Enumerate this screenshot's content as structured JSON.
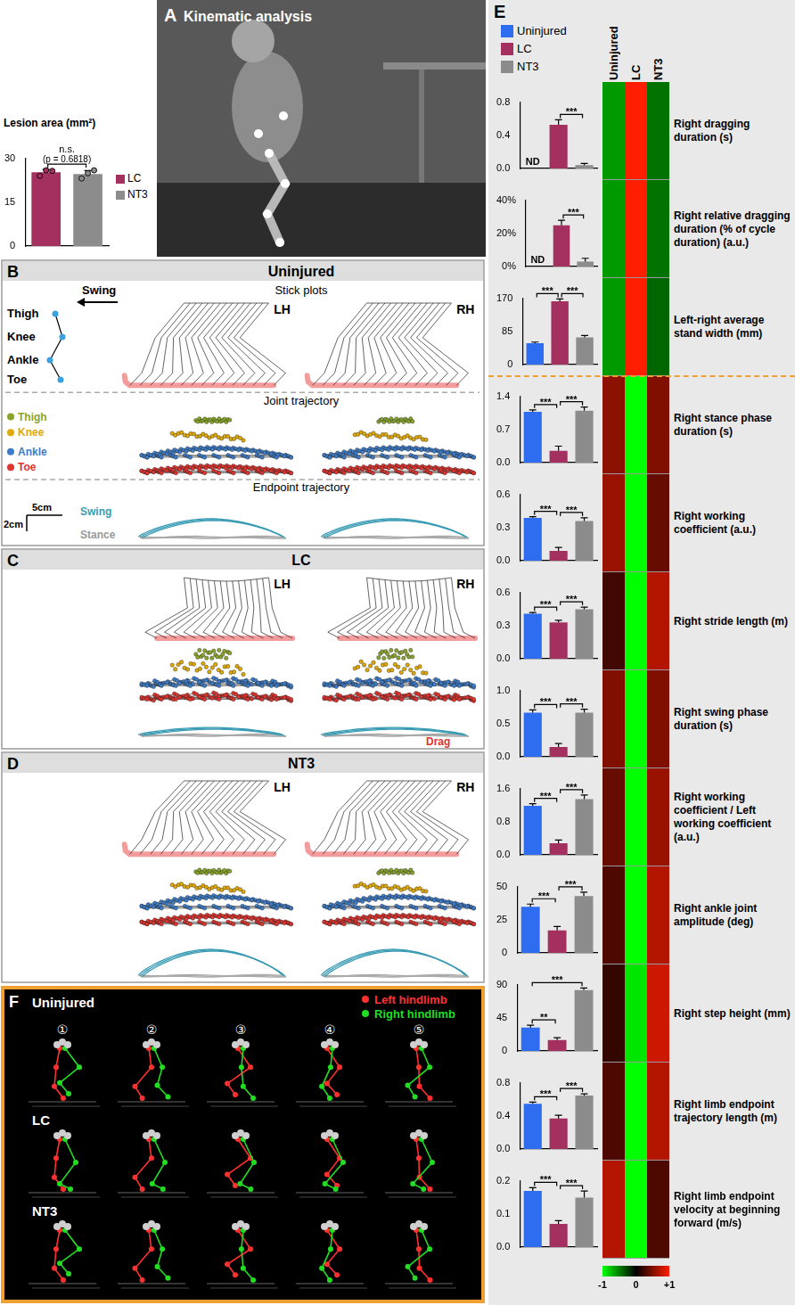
{
  "panel_labels": [
    "A",
    "B",
    "C",
    "D",
    "E",
    "F"
  ],
  "photo": {
    "title": "Kinematic analysis"
  },
  "stick_plots": {
    "direction_label": "Swing",
    "joints": [
      "Thigh",
      "Knee",
      "Ankle",
      "Toe"
    ],
    "sections": [
      "Stick plots",
      "Joint trajectory",
      "Endpoint trajectory"
    ],
    "limbs": [
      "LH",
      "RH"
    ],
    "trajectory_legend": [
      {
        "name": "Thigh",
        "color": "#8aa52c"
      },
      {
        "name": "Knee",
        "color": "#e0a800"
      },
      {
        "name": "Ankle",
        "color": "#3d7cc9"
      },
      {
        "name": "Toe",
        "color": "#e0342f"
      }
    ],
    "scale_bar": {
      "x": "5cm",
      "y": "2cm"
    },
    "phase_labels": {
      "swing": "Swing",
      "stance": "Stance"
    },
    "groups": [
      {
        "name": "Uninjured"
      },
      {
        "name": "LC",
        "annotation": "Drag"
      },
      {
        "name": "NT3"
      }
    ]
  },
  "reconstruction": {
    "groups": [
      "Uninjured",
      "LC",
      "NT3"
    ],
    "frames": [
      "①",
      "②",
      "③",
      "④",
      "⑤"
    ],
    "legend": [
      {
        "name": "Left hindlimb",
        "color": "#ff3030"
      },
      {
        "name": "Right hindlimb",
        "color": "#22dd22"
      }
    ]
  },
  "e_legend": [
    {
      "name": "Uninjured",
      "color": "#2f6df0"
    },
    {
      "name": "LC",
      "color": "#a3305f"
    },
    {
      "name": "NT3",
      "color": "#8c8c8c"
    }
  ],
  "chart_data": [
    {
      "type": "bar",
      "title": "Lesion area (mm²)",
      "categories": [
        "LC",
        "NT3"
      ],
      "values": [
        25.3,
        24.7
      ],
      "errors": [
        1.0,
        1.2
      ],
      "points": [
        [
          24.1,
          26.0,
          25.8
        ],
        [
          23.2,
          25.0,
          26.0
        ]
      ],
      "colors": [
        "#a3305f",
        "#8c8c8c"
      ],
      "ylim": [
        0,
        30
      ],
      "yticks": [
        0,
        15,
        30
      ],
      "tick_labels": "y",
      "legend": "right",
      "annotations": [
        {
          "from": 0,
          "to": 1,
          "label": "n.s.",
          "sublabel": "(p = 0.6818)"
        }
      ]
    },
    {
      "type": "bar",
      "categories": [
        "Uninjured",
        "LC",
        "NT3"
      ],
      "values": [
        null,
        0.53,
        0.04
      ],
      "errors": [
        null,
        0.06,
        0.02
      ],
      "value_labels": [
        "ND",
        null,
        null
      ],
      "colors": [
        "#2f6df0",
        "#a3305f",
        "#8c8c8c"
      ],
      "ylim": [
        0,
        0.8
      ],
      "yticks": [
        {
          "value": 0,
          "label": "0.0"
        },
        0.4,
        0.8
      ],
      "tick_labels": "y",
      "annotations": [
        {
          "from": 1,
          "to": 2,
          "label": "***"
        }
      ]
    },
    {
      "type": "bar",
      "categories": [
        "Uninjured",
        "LC",
        "NT3"
      ],
      "values": [
        null,
        25,
        3
      ],
      "errors": [
        null,
        3,
        2
      ],
      "value_labels": [
        "ND",
        null,
        null
      ],
      "colors": [
        "#2f6df0",
        "#a3305f",
        "#8c8c8c"
      ],
      "ylim": [
        0,
        40
      ],
      "yticks": [
        {
          "value": 0,
          "label": "0%"
        },
        {
          "value": 20,
          "label": "20%"
        },
        {
          "value": 40,
          "label": "40%"
        }
      ],
      "tick_labels": "y",
      "annotations": [
        {
          "from": 1,
          "to": 2,
          "label": "***"
        }
      ]
    },
    {
      "type": "bar",
      "categories": [
        "Uninjured",
        "LC",
        "NT3"
      ],
      "values": [
        55,
        163,
        70
      ],
      "errors": [
        3,
        6,
        5
      ],
      "colors": [
        "#2f6df0",
        "#a3305f",
        "#8c8c8c"
      ],
      "ylim": [
        0,
        170
      ],
      "yticks": [
        0,
        85,
        170
      ],
      "tick_labels": "y",
      "annotations": [
        {
          "from": 0,
          "to": 1,
          "label": "***"
        },
        {
          "from": 1,
          "to": 2,
          "label": "***"
        }
      ]
    },
    {
      "type": "bar",
      "categories": [
        "Uninjured",
        "LC",
        "NT3"
      ],
      "values": [
        1.08,
        0.25,
        1.1
      ],
      "errors": [
        0.04,
        0.1,
        0.08
      ],
      "colors": [
        "#2f6df0",
        "#a3305f",
        "#8c8c8c"
      ],
      "ylim": [
        0,
        1.4
      ],
      "yticks": [
        {
          "value": 0,
          "label": "0.0"
        },
        0.7,
        1.4
      ],
      "tick_labels": "y",
      "annotations": [
        {
          "from": 0,
          "to": 1,
          "label": "***"
        },
        {
          "from": 1,
          "to": 2,
          "label": "***"
        }
      ]
    },
    {
      "type": "bar",
      "categories": [
        "Uninjured",
        "LC",
        "NT3"
      ],
      "values": [
        0.39,
        0.09,
        0.36
      ],
      "errors": [
        0.01,
        0.03,
        0.03
      ],
      "colors": [
        "#2f6df0",
        "#a3305f",
        "#8c8c8c"
      ],
      "ylim": [
        0,
        0.6
      ],
      "yticks": [
        {
          "value": 0,
          "label": "0.0"
        },
        0.3,
        0.6
      ],
      "tick_labels": "y",
      "annotations": [
        {
          "from": 0,
          "to": 1,
          "label": "***"
        },
        {
          "from": 1,
          "to": 2,
          "label": "***"
        }
      ]
    },
    {
      "type": "bar",
      "categories": [
        "Uninjured",
        "LC",
        "NT3"
      ],
      "values": [
        0.41,
        0.33,
        0.45
      ],
      "errors": [
        0.01,
        0.02,
        0.02
      ],
      "colors": [
        "#2f6df0",
        "#a3305f",
        "#8c8c8c"
      ],
      "ylim": [
        0,
        0.6
      ],
      "yticks": [
        {
          "value": 0,
          "label": "0.0"
        },
        0.3,
        0.6
      ],
      "tick_labels": "y",
      "annotations": [
        {
          "from": 0,
          "to": 1,
          "label": "***"
        },
        {
          "from": 1,
          "to": 2,
          "label": "***"
        }
      ]
    },
    {
      "type": "bar",
      "categories": [
        "Uninjured",
        "LC",
        "NT3"
      ],
      "values": [
        0.67,
        0.15,
        0.67
      ],
      "errors": [
        0.04,
        0.05,
        0.05
      ],
      "colors": [
        "#2f6df0",
        "#a3305f",
        "#8c8c8c"
      ],
      "ylim": [
        0,
        1.0
      ],
      "yticks": [
        {
          "value": 0,
          "label": "0.0"
        },
        0.5,
        {
          "value": 1,
          "label": "1.0"
        }
      ],
      "tick_labels": "y",
      "annotations": [
        {
          "from": 0,
          "to": 1,
          "label": "***"
        },
        {
          "from": 1,
          "to": 2,
          "label": "***"
        }
      ]
    },
    {
      "type": "bar",
      "categories": [
        "Uninjured",
        "LC",
        "NT3"
      ],
      "values": [
        1.19,
        0.28,
        1.35
      ],
      "errors": [
        0.05,
        0.08,
        0.1
      ],
      "colors": [
        "#2f6df0",
        "#a3305f",
        "#8c8c8c"
      ],
      "ylim": [
        0,
        1.6
      ],
      "yticks": [
        {
          "value": 0,
          "label": "0.0"
        },
        0.8,
        1.6
      ],
      "tick_labels": "y",
      "annotations": [
        {
          "from": 0,
          "to": 1,
          "label": "***"
        },
        {
          "from": 1,
          "to": 2,
          "label": "***"
        }
      ]
    },
    {
      "type": "bar",
      "categories": [
        "Uninjured",
        "LC",
        "NT3"
      ],
      "values": [
        35,
        17,
        43
      ],
      "errors": [
        2,
        3,
        3
      ],
      "colors": [
        "#2f6df0",
        "#a3305f",
        "#8c8c8c"
      ],
      "ylim": [
        0,
        50
      ],
      "yticks": [
        0,
        25,
        50
      ],
      "tick_labels": "y",
      "annotations": [
        {
          "from": 0,
          "to": 1,
          "label": "***"
        },
        {
          "from": 1,
          "to": 2,
          "label": "***"
        }
      ]
    },
    {
      "type": "bar",
      "categories": [
        "Uninjured",
        "LC",
        "NT3"
      ],
      "values": [
        32,
        15,
        83
      ],
      "errors": [
        3,
        3,
        3
      ],
      "colors": [
        "#2f6df0",
        "#a3305f",
        "#8c8c8c"
      ],
      "ylim": [
        0,
        90
      ],
      "yticks": [
        0,
        45,
        90
      ],
      "tick_labels": "y",
      "annotations": [
        {
          "from": 0,
          "to": 1,
          "label": "**"
        },
        {
          "from": 0,
          "to": 2,
          "label": "***"
        }
      ]
    },
    {
      "type": "bar",
      "categories": [
        "Uninjured",
        "LC",
        "NT3"
      ],
      "values": [
        0.55,
        0.37,
        0.65
      ],
      "errors": [
        0.02,
        0.04,
        0.02
      ],
      "colors": [
        "#2f6df0",
        "#a3305f",
        "#8c8c8c"
      ],
      "ylim": [
        0,
        0.8
      ],
      "yticks": [
        {
          "value": 0,
          "label": "0.0"
        },
        0.4,
        0.8
      ],
      "tick_labels": "y",
      "annotations": [
        {
          "from": 0,
          "to": 1,
          "label": "***"
        },
        {
          "from": 1,
          "to": 2,
          "label": "***"
        }
      ]
    },
    {
      "type": "bar",
      "categories": [
        "Uninjured",
        "LC",
        "NT3"
      ],
      "values": [
        0.17,
        0.07,
        0.15
      ],
      "errors": [
        0.01,
        0.01,
        0.02
      ],
      "colors": [
        "#2f6df0",
        "#a3305f",
        "#8c8c8c"
      ],
      "ylim": [
        0,
        0.2
      ],
      "yticks": [
        {
          "value": 0,
          "label": "0.0"
        },
        0.1,
        0.2
      ],
      "tick_labels": "y",
      "annotations": [
        {
          "from": 0,
          "to": 1,
          "label": "***"
        },
        {
          "from": 1,
          "to": 2,
          "label": "***"
        }
      ]
    },
    {
      "type": "heatmap",
      "columns": [
        "Uninjured",
        "LC",
        "NT3"
      ],
      "rows": [
        "Right dragging duration (s)",
        "Right relative dragging duration (% of cycle duration) (a.u.)",
        "Left-right average stand width (mm)",
        "Right stance phase duration (s)",
        "Right working coefficient (a.u.)",
        "Right stride length (m)",
        "Right swing phase duration (s)",
        "Right working coefficient / Left working coefficient (a.u.)",
        "Right ankle joint amplitude (deg)",
        "Right step height (mm)",
        "Right limb endpoint trajectory length (m)",
        "Right limb endpoint velocity at beginning forward (m/s)"
      ],
      "cells": [
        [
          -0.6,
          1,
          -0.45
        ],
        [
          -0.6,
          1,
          -0.45
        ],
        [
          -0.6,
          1,
          -0.4
        ],
        [
          0.55,
          -1,
          0.5
        ],
        [
          0.6,
          -1,
          0.4
        ],
        [
          0.25,
          -1,
          0.7
        ],
        [
          0.5,
          -1,
          0.5
        ],
        [
          0.4,
          -1,
          0.6
        ],
        [
          0.3,
          -1,
          0.7
        ],
        [
          0.2,
          -0.9,
          0.8
        ],
        [
          0.3,
          -1,
          0.7
        ],
        [
          0.7,
          -1,
          0.3
        ]
      ],
      "colorbar": {
        "range": [
          -1,
          1
        ],
        "ticks": [
          -1,
          0,
          {
            "value": 1,
            "label": "+1"
          }
        ]
      }
    }
  ]
}
